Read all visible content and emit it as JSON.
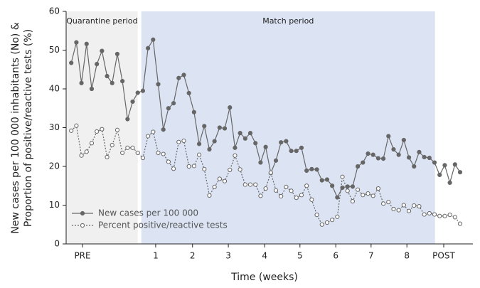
{
  "chart_data": {
    "type": "line",
    "ylabel": [
      "New cases per 100 000 inhabitants (No) &",
      "Proportion of positive/reactive tests (%)"
    ],
    "xlabel": "Time (weeks)",
    "x": [
      0,
      1,
      2,
      3,
      4,
      5,
      6,
      7,
      8,
      9,
      10,
      11,
      12,
      13,
      14,
      15,
      16,
      17,
      18,
      19,
      20,
      21,
      22,
      23,
      24,
      25,
      26,
      27,
      28,
      29,
      30,
      31,
      32,
      33,
      34,
      35,
      36,
      37,
      38,
      39,
      40,
      41,
      42,
      43,
      44,
      45,
      46,
      47,
      48,
      49,
      50,
      51,
      52,
      53,
      54,
      55,
      56,
      57,
      58,
      59,
      60,
      61,
      62,
      63,
      64,
      65,
      66,
      67,
      68,
      69,
      70,
      71,
      72,
      73,
      74,
      75,
      76
    ],
    "series": [
      {
        "name": "New cases per 100 000",
        "color": "#666666",
        "marker": "filled",
        "dash": false,
        "values": [
          46.7,
          52,
          41.5,
          51.6,
          40,
          46.4,
          49.8,
          43.3,
          41.5,
          49,
          42,
          32.2,
          36.7,
          39,
          39.5,
          50.5,
          52.7,
          41.2,
          29.5,
          35,
          36.3,
          42.8,
          43.6,
          38.9,
          34,
          25.8,
          30.4,
          24.4,
          26.5,
          30,
          29.8,
          35.2,
          24.8,
          28.6,
          27.2,
          28.6,
          26,
          21,
          25,
          18.3,
          21.5,
          26.2,
          26.5,
          24,
          24,
          24.8,
          18.9,
          19.3,
          19.2,
          16.4,
          16.6,
          15,
          12,
          14.5,
          14.8,
          14.8,
          20,
          21,
          23.3,
          23,
          22.1,
          22,
          27.8,
          24.4,
          23,
          26.8,
          22.3,
          20,
          23.7,
          22.4,
          22.2,
          21,
          17.8,
          20.3,
          15.8,
          20.5,
          18.5
        ]
      },
      {
        "name": "Percent positive/reactive tests",
        "color": "#666666",
        "marker": "open",
        "dash": true,
        "values": [
          29.2,
          30.5,
          22.8,
          23.8,
          26,
          29,
          29.6,
          22.4,
          25.5,
          29.4,
          23.5,
          24.8,
          24.8,
          23.5,
          22.2,
          27.8,
          28.9,
          23.5,
          23.2,
          21.2,
          19.4,
          26.3,
          26.6,
          20,
          20.1,
          23,
          19.3,
          12.5,
          14.7,
          16.8,
          16.2,
          19.1,
          22.8,
          19.2,
          15.3,
          15.3,
          15.3,
          12.4,
          14.3,
          18.4,
          13.8,
          12.3,
          14.7,
          13.7,
          11.9,
          12.6,
          15,
          11.4,
          7.5,
          5,
          5.5,
          6.2,
          7,
          17.3,
          13.7,
          11,
          14,
          12.6,
          13,
          12.4,
          14.3,
          10.4,
          10.8,
          9,
          8.7,
          10,
          8.5,
          9.9,
          9.7,
          7.6,
          7.9,
          7.6,
          7.2,
          7.2,
          7.5,
          6.9,
          5.2
        ]
      }
    ],
    "regions": [
      {
        "label": "Quarantine period",
        "start": -1,
        "end": 13,
        "color": "#f0f0f0"
      },
      {
        "label": "Match period",
        "start": 13.7,
        "end": 71.1,
        "color": "#dce4f4"
      }
    ],
    "xlim": [
      -1,
      78.5
    ],
    "xticks": [
      {
        "value": 2.2,
        "label": "PRE"
      },
      {
        "value": 16.5,
        "label": "1"
      },
      {
        "value": 23.7,
        "label": "2"
      },
      {
        "value": 30.7,
        "label": "3"
      },
      {
        "value": 37.8,
        "label": "4"
      },
      {
        "value": 44.7,
        "label": "5"
      },
      {
        "value": 51.7,
        "label": "6"
      },
      {
        "value": 58.6,
        "label": "7"
      },
      {
        "value": 65.6,
        "label": "8"
      },
      {
        "value": 72.8,
        "label": "POST"
      }
    ],
    "ylim": [
      0,
      60
    ],
    "yticks": [
      0,
      10,
      20,
      30,
      40,
      50,
      60
    ],
    "legend": "lower left"
  }
}
